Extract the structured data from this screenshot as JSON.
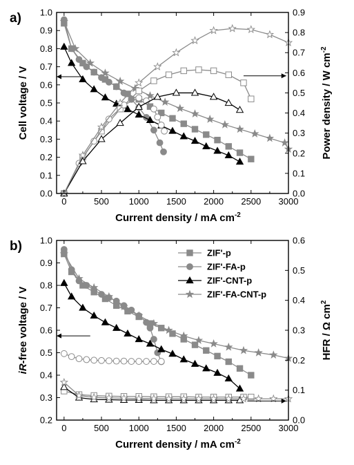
{
  "colors": {
    "ZIF'-p": "#8a8a8a",
    "ZIF'-FA-p": "#8a8a8a",
    "ZIF'-CNT-p": "#000000",
    "ZIF'-FA-CNT-p": "#8a8a8a",
    "axis": "#000000"
  },
  "chart_data": [
    {
      "panel_label": "a)",
      "type": "line",
      "xlabel": "Current density / mA cm",
      "xlabel_sup": "-2",
      "ylabel": "Cell voltage / V",
      "y2label": "Power density / W cm",
      "y2label_sup": "-2",
      "xlim": [
        -100,
        3000
      ],
      "ylim": [
        0.0,
        1.0
      ],
      "y2lim": [
        0.0,
        0.9
      ],
      "x_ticks": [
        0,
        500,
        1000,
        1500,
        2000,
        2500,
        3000
      ],
      "y_ticks": [
        0.0,
        0.1,
        0.2,
        0.3,
        0.4,
        0.5,
        0.6,
        0.7,
        0.8,
        0.9,
        1.0
      ],
      "y2_ticks": [
        0.0,
        0.1,
        0.2,
        0.3,
        0.4,
        0.5,
        0.6,
        0.7,
        0.8,
        0.9
      ],
      "arrows": [
        {
          "direction": "left",
          "x_from": 250,
          "x_to": -100,
          "y": 0.645
        },
        {
          "direction": "right",
          "x_from": 2400,
          "x_to": 2970,
          "y": 0.65
        }
      ],
      "series": [
        {
          "name": "ZIF'-p",
          "axis": "left",
          "marker": "square",
          "filled": true,
          "x": [
            0,
            100,
            250,
            400,
            550,
            700,
            850,
            1000,
            1150,
            1300,
            1450,
            1600,
            1750,
            1900,
            2050,
            2200,
            2350,
            2500
          ],
          "y": [
            0.94,
            0.8,
            0.72,
            0.67,
            0.63,
            0.59,
            0.55,
            0.52,
            0.48,
            0.445,
            0.415,
            0.385,
            0.355,
            0.325,
            0.295,
            0.26,
            0.225,
            0.19
          ]
        },
        {
          "name": "ZIF'-FA-p",
          "axis": "left",
          "marker": "circle",
          "filled": true,
          "x": [
            0,
            100,
            200,
            300,
            400,
            500,
            600,
            700,
            800,
            900,
            1000,
            1100,
            1200,
            1280,
            1330
          ],
          "y": [
            0.96,
            0.8,
            0.74,
            0.7,
            0.67,
            0.64,
            0.615,
            0.59,
            0.555,
            0.52,
            0.475,
            0.42,
            0.35,
            0.28,
            0.23
          ]
        },
        {
          "name": "ZIF'-CNT-p",
          "axis": "left",
          "marker": "triangle",
          "filled": true,
          "x": [
            0,
            100,
            250,
            400,
            550,
            700,
            850,
            1000,
            1150,
            1300,
            1450,
            1600,
            1750,
            1900,
            2050,
            2200,
            2350
          ],
          "y": [
            0.81,
            0.72,
            0.63,
            0.575,
            0.53,
            0.495,
            0.465,
            0.435,
            0.405,
            0.375,
            0.345,
            0.315,
            0.29,
            0.26,
            0.235,
            0.21,
            0.175
          ]
        },
        {
          "name": "ZIF'-FA-CNT-p",
          "axis": "left",
          "marker": "star",
          "filled": true,
          "x": [
            0,
            150,
            350,
            550,
            750,
            950,
            1150,
            1350,
            1550,
            1750,
            1950,
            2150,
            2350,
            2550,
            2750,
            2950,
            3000
          ],
          "y": [
            0.95,
            0.8,
            0.72,
            0.665,
            0.62,
            0.58,
            0.54,
            0.505,
            0.47,
            0.44,
            0.41,
            0.38,
            0.355,
            0.33,
            0.305,
            0.28,
            0.245
          ]
        },
        {
          "name": "ZIF'-p",
          "axis": "right",
          "marker": "square",
          "filled": false,
          "x": [
            0,
            250,
            500,
            750,
            1000,
            1200,
            1400,
            1600,
            1800,
            2000,
            2200,
            2400,
            2500
          ],
          "y": [
            0.0,
            0.18,
            0.31,
            0.42,
            0.51,
            0.56,
            0.59,
            0.61,
            0.615,
            0.61,
            0.59,
            0.55,
            0.47
          ]
        },
        {
          "name": "ZIF'-FA-p",
          "axis": "right",
          "marker": "circle",
          "filled": false,
          "x": [
            0,
            200,
            400,
            600,
            800,
            1000,
            1100,
            1200,
            1250,
            1300,
            1340
          ],
          "y": [
            0.0,
            0.15,
            0.26,
            0.37,
            0.44,
            0.475,
            0.46,
            0.42,
            0.38,
            0.34,
            0.31
          ]
        },
        {
          "name": "ZIF'-CNT-p",
          "axis": "right",
          "marker": "triangle",
          "filled": false,
          "x": [
            0,
            250,
            500,
            750,
            1000,
            1250,
            1500,
            1750,
            2000,
            2200,
            2350
          ],
          "y": [
            0.0,
            0.16,
            0.27,
            0.35,
            0.43,
            0.48,
            0.5,
            0.5,
            0.48,
            0.45,
            0.415
          ]
        },
        {
          "name": "ZIF'-FA-CNT-p",
          "axis": "right",
          "marker": "star",
          "filled": false,
          "x": [
            0,
            250,
            500,
            750,
            1000,
            1250,
            1500,
            1750,
            2000,
            2250,
            2500,
            2750,
            3000
          ],
          "y": [
            0.0,
            0.19,
            0.33,
            0.45,
            0.55,
            0.63,
            0.7,
            0.76,
            0.81,
            0.82,
            0.815,
            0.79,
            0.75
          ]
        }
      ]
    },
    {
      "panel_label": "b)",
      "type": "line",
      "xlabel": "Current density / mA cm",
      "xlabel_sup": "-2",
      "ylabel_italic": "iR",
      "ylabel": "-free voltage / V",
      "y2label": "HFR / Ω cm",
      "y2label_sup": "2",
      "xlim": [
        -100,
        3000
      ],
      "ylim": [
        0.2,
        1.0
      ],
      "y2lim": [
        0.0,
        0.6
      ],
      "x_ticks": [
        0,
        500,
        1000,
        1500,
        2000,
        2500,
        3000
      ],
      "y_ticks": [
        0.2,
        0.3,
        0.4,
        0.5,
        0.6,
        0.7,
        0.8,
        0.9,
        1.0
      ],
      "y2_ticks": [
        0.0,
        0.1,
        0.2,
        0.3,
        0.4,
        0.5,
        0.6
      ],
      "legend": {
        "position": "top-right",
        "entries": [
          "ZIF'-p",
          "ZIF'-FA-p",
          "ZIF'-CNT-p",
          "ZIF'-FA-CNT-p"
        ]
      },
      "arrows": [
        {
          "direction": "left",
          "x_from": 350,
          "x_to": -100,
          "y": 0.575
        },
        {
          "direction": "right",
          "x_from": 2450,
          "x_to": 2970,
          "y": 0.285
        }
      ],
      "series": [
        {
          "name": "ZIF'-p",
          "axis": "left",
          "marker": "square",
          "filled": true,
          "x": [
            0,
            100,
            250,
            400,
            550,
            700,
            850,
            1000,
            1150,
            1300,
            1450,
            1600,
            1750,
            1900,
            2050,
            2200,
            2350,
            2500
          ],
          "y": [
            0.94,
            0.86,
            0.8,
            0.77,
            0.74,
            0.71,
            0.685,
            0.66,
            0.63,
            0.61,
            0.585,
            0.56,
            0.535,
            0.51,
            0.485,
            0.46,
            0.43,
            0.4
          ]
        },
        {
          "name": "ZIF'-FA-p",
          "axis": "left",
          "marker": "circle",
          "filled": true,
          "x": [
            0,
            100,
            200,
            300,
            400,
            500,
            600,
            700,
            800,
            900,
            1000,
            1100,
            1150,
            1200,
            1250,
            1300
          ],
          "y": [
            0.96,
            0.87,
            0.82,
            0.8,
            0.78,
            0.76,
            0.745,
            0.73,
            0.71,
            0.69,
            0.665,
            0.635,
            0.61,
            0.56,
            0.5,
            0.46
          ]
        },
        {
          "name": "ZIF'-CNT-p",
          "axis": "left",
          "marker": "triangle",
          "filled": true,
          "x": [
            0,
            100,
            250,
            400,
            550,
            700,
            850,
            1000,
            1150,
            1300,
            1450,
            1600,
            1750,
            1900,
            2050,
            2200,
            2350
          ],
          "y": [
            0.81,
            0.75,
            0.7,
            0.665,
            0.635,
            0.61,
            0.585,
            0.56,
            0.54,
            0.515,
            0.495,
            0.47,
            0.45,
            0.43,
            0.41,
            0.385,
            0.34
          ]
        },
        {
          "name": "ZIF'-FA-CNT-p",
          "axis": "left",
          "marker": "star",
          "filled": true,
          "x": [
            0,
            200,
            400,
            600,
            800,
            1000,
            1200,
            1400,
            1600,
            1800,
            2000,
            2200,
            2400,
            2600,
            2800,
            3000
          ],
          "y": [
            0.94,
            0.83,
            0.79,
            0.75,
            0.705,
            0.665,
            0.63,
            0.6,
            0.575,
            0.555,
            0.54,
            0.525,
            0.51,
            0.5,
            0.49,
            0.475
          ]
        },
        {
          "name": "ZIF'-p",
          "axis": "right",
          "marker": "square",
          "filled": false,
          "x": [
            0,
            200,
            400,
            600,
            800,
            1000,
            1200,
            1400,
            1600,
            1800,
            2000,
            2200,
            2400,
            2500
          ],
          "y": [
            0.097,
            0.085,
            0.082,
            0.08,
            0.079,
            0.079,
            0.078,
            0.078,
            0.078,
            0.077,
            0.077,
            0.077,
            0.077,
            0.077
          ]
        },
        {
          "name": "ZIF'-FA-p",
          "axis": "right",
          "marker": "circle",
          "filled": false,
          "x": [
            0,
            100,
            200,
            300,
            400,
            500,
            600,
            700,
            800,
            900,
            1000,
            1100,
            1200,
            1300
          ],
          "y": [
            0.222,
            0.212,
            0.205,
            0.202,
            0.2,
            0.199,
            0.198,
            0.197,
            0.197,
            0.196,
            0.196,
            0.196,
            0.196,
            0.196
          ]
        },
        {
          "name": "ZIF'-CNT-p",
          "axis": "right",
          "marker": "triangle",
          "filled": false,
          "x": [
            0,
            200,
            400,
            600,
            800,
            1000,
            1200,
            1400,
            1600,
            1800,
            2000,
            2200,
            2350
          ],
          "y": [
            0.11,
            0.075,
            0.069,
            0.068,
            0.067,
            0.067,
            0.066,
            0.066,
            0.066,
            0.066,
            0.066,
            0.066,
            0.066
          ]
        },
        {
          "name": "ZIF'-FA-CNT-p",
          "axis": "right",
          "marker": "star",
          "filled": false,
          "x": [
            0,
            200,
            400,
            600,
            800,
            1000,
            1200,
            1400,
            1600,
            1800,
            2000,
            2200,
            2400,
            2600,
            2800,
            3000
          ],
          "y": [
            0.126,
            0.082,
            0.076,
            0.074,
            0.073,
            0.072,
            0.072,
            0.071,
            0.071,
            0.071,
            0.071,
            0.071,
            0.071,
            0.071,
            0.071,
            0.071
          ]
        }
      ]
    }
  ]
}
